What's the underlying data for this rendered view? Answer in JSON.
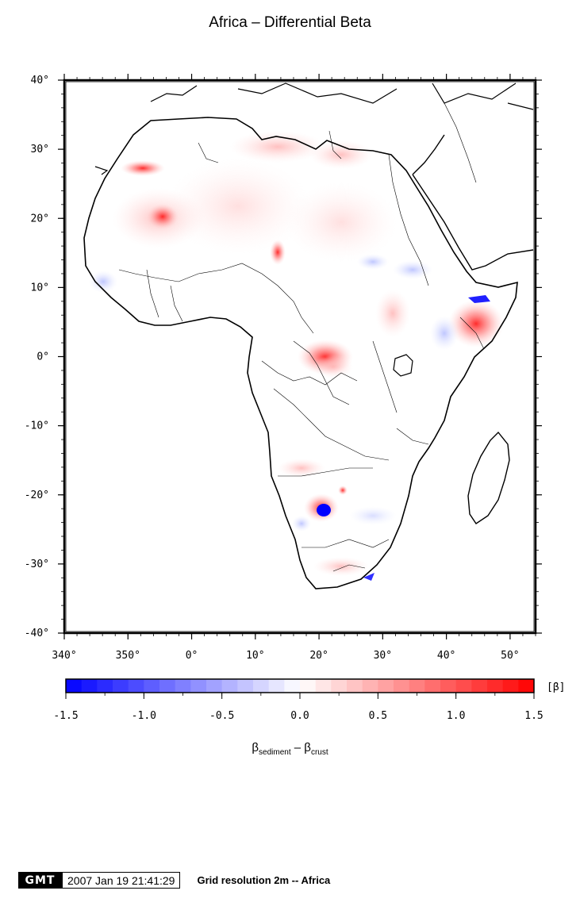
{
  "title": "Africa – Differential Beta",
  "map": {
    "lat_labels": [
      "40°",
      "30°",
      "20°",
      "10°",
      "0°",
      "-10°",
      "-20°",
      "-30°",
      "-40°"
    ],
    "lon_labels": [
      "340°",
      "350°",
      "0°",
      "10°",
      "20°",
      "30°",
      "40°",
      "50°"
    ]
  },
  "colorbar": {
    "unit": "[β]",
    "tick_labels": [
      "-1.5",
      "-1.0",
      "-0.5",
      "0.0",
      "0.5",
      "1.0",
      "1.5"
    ],
    "range": [
      -1.5,
      1.5
    ],
    "colors": {
      "min": "#0000ff",
      "mid": "#ffffff",
      "max": "#ff0000"
    }
  },
  "axis_label": {
    "beta": "β",
    "sub1": "sediment",
    "minus": " – ",
    "sub2": "crust"
  },
  "footer": {
    "logo": "GMT",
    "timestamp": "2007 Jan 19 21:41:29",
    "grid_resolution": "Grid resolution 2m -- Africa"
  }
}
